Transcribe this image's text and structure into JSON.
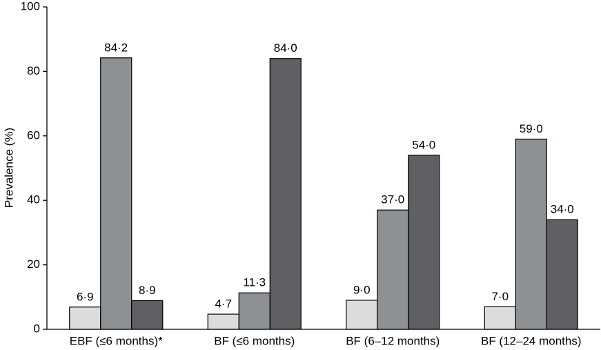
{
  "chart_data": {
    "type": "bar",
    "y_label": "Prevalence (%)",
    "categories": [
      "EBF (≤6 months)*",
      "BF (≤6 months)",
      "BF (6–12 months)",
      "BF (12–24 months)"
    ],
    "series": [
      {
        "color": "#dcdcdc",
        "values": [
          6.9,
          4.7,
          9.0,
          7.0
        ],
        "value_labels": [
          "6·9",
          "4·7",
          "9·0",
          "7·0"
        ]
      },
      {
        "color": "#8e9194",
        "values": [
          84.2,
          11.3,
          37.0,
          59.0
        ],
        "value_labels": [
          "84·2",
          "11·3",
          "37·0",
          "59·0"
        ]
      },
      {
        "color": "#5f6064",
        "values": [
          8.9,
          84.0,
          54.0,
          34.0
        ],
        "value_labels": [
          "8·9",
          "84·0",
          "54·0",
          "34·0"
        ]
      }
    ],
    "ylim": [
      0,
      100
    ],
    "yticks": [
      0,
      20,
      40,
      60,
      80,
      100
    ],
    "grid": false
  }
}
